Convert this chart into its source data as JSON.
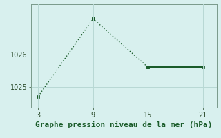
{
  "x": [
    3,
    9,
    15,
    21
  ],
  "y": [
    1024.7,
    1027.1,
    1025.6,
    1025.6
  ],
  "line_color": "#1a5c2a",
  "marker": "s",
  "marker_size": 2.5,
  "background_color": "#d8f0ee",
  "grid_color": "#b8d8d4",
  "xlabel": "Graphe pression niveau de la mer (hPa)",
  "xlabel_fontsize": 8.0,
  "xlabel_color": "#1a5c2a",
  "yticks": [
    1025,
    1026
  ],
  "xticks": [
    3,
    9,
    15,
    21
  ],
  "xlim": [
    2.2,
    22.5
  ],
  "ylim": [
    1024.35,
    1027.55
  ],
  "tick_color": "#2a4a2a",
  "tick_fontsize": 7.0,
  "spine_color": "#7a9a8a"
}
